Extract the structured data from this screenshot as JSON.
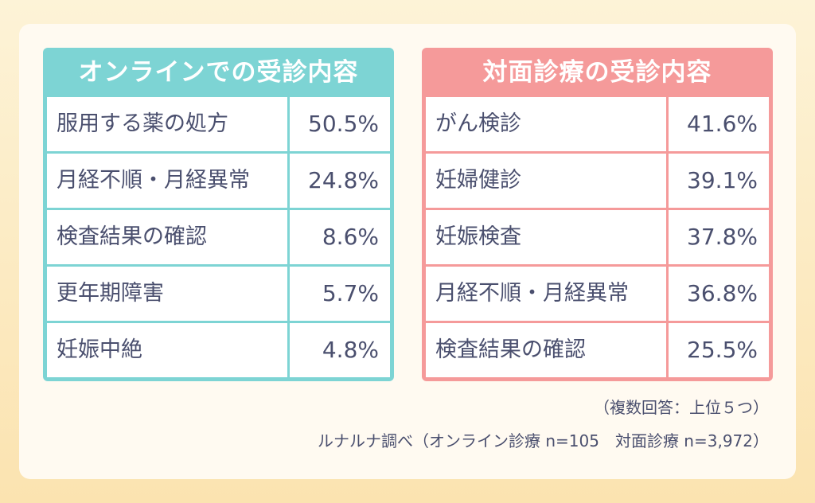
{
  "chart_data": [
    {
      "type": "table",
      "title": "オンラインでの受診内容",
      "categories": [
        "服用する薬の処方",
        "月経不順・月経異常",
        "検査結果の確認",
        "更年期障害",
        "妊娠中絶"
      ],
      "values": [
        50.5,
        24.8,
        8.6,
        5.7,
        4.8
      ],
      "value_labels": [
        "50.5%",
        "24.8%",
        "8.6%",
        "5.7%",
        "4.8%"
      ],
      "header_color": "#7dd4d4"
    },
    {
      "type": "table",
      "title": "対面診療の受診内容",
      "categories": [
        "がん検診",
        "妊婦健診",
        "妊娠検査",
        "月経不順・月経異常",
        "検査結果の確認"
      ],
      "values": [
        41.6,
        39.1,
        37.8,
        36.8,
        25.5
      ],
      "value_labels": [
        "41.6%",
        "39.1%",
        "37.8%",
        "36.8%",
        "25.5%"
      ],
      "header_color": "#f59a9a"
    }
  ],
  "notes": {
    "answer_type": "（複数回答：上位５つ）",
    "source": "ルナルナ調べ（オンライン診療 n=105　対面診療 n=3,972）"
  },
  "colors": {
    "text": "#4a4f6e",
    "online_accent": "#7dd4d4",
    "inperson_accent": "#f59a9a",
    "card": "#fffaf1"
  }
}
